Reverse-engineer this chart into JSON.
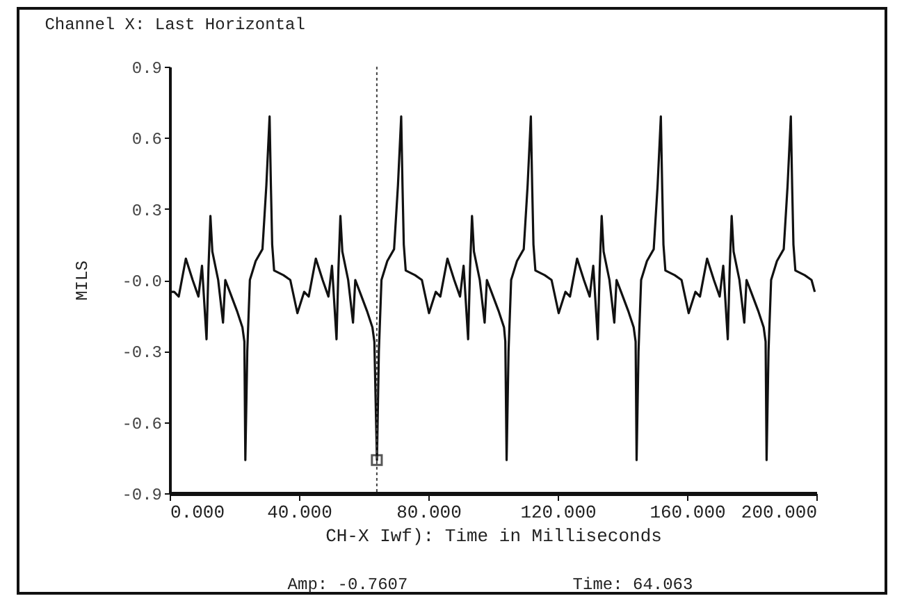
{
  "chart_data": {
    "type": "line",
    "title": "Channel X: Last Horizontal",
    "xlabel": "CH-X Iwf): Time in Milliseconds",
    "ylabel": "MILS",
    "annotations": [
      "Amp: -0.7607",
      "Time: 64.063"
    ],
    "xlim": [
      0,
      200
    ],
    "xticks": [
      {
        "value": 0,
        "label": "0.000"
      },
      {
        "value": 40,
        "label": "40.000"
      },
      {
        "value": 80,
        "label": "80.000"
      },
      {
        "value": 120,
        "label": "120.000"
      },
      {
        "value": 160,
        "label": "160.000"
      },
      {
        "value": 200,
        "label": "200.000"
      }
    ],
    "ylim": [
      -0.9,
      0.9
    ],
    "yticks": [
      -0.9,
      -0.6,
      -0.3,
      {
        "value": 0,
        "label": "-0.0"
      },
      0.3,
      0.6,
      0.9
    ],
    "grid": false,
    "line_style": "solid",
    "ref_lines": [
      {
        "axis": "x",
        "value": 64.063,
        "color": "#444444",
        "line_style": "dotted"
      }
    ],
    "series": [
      {
        "color": "#111111",
        "x": [
          0,
          1.4,
          2.8,
          5.0,
          7.1,
          8.9,
          10.0,
          11.4,
          12.0,
          12.6,
          13.2,
          15.0,
          16.5,
          17.2,
          18.6,
          20.8,
          22.5,
          23.1,
          23.4,
          24.0,
          24.8,
          26.6,
          28.7,
          29.9,
          30.9,
          31.3,
          31.7,
          32.3,
          35.2,
          37.3,
          39.5,
          41.6,
          43.0,
          45.2,
          47.3,
          49.1,
          50.2,
          51.6,
          52.2,
          52.8,
          53.4,
          55.2,
          56.7,
          57.4,
          58.8,
          61.0,
          62.7,
          63.3,
          64.1,
          64.7,
          65.5,
          67.3,
          69.4,
          70.6,
          71.6,
          72.0,
          72.4,
          73.0,
          75.9,
          78.0,
          80.2,
          82.3,
          83.7,
          85.9,
          88.0,
          89.8,
          90.9,
          92.3,
          92.9,
          93.5,
          94.1,
          95.9,
          97.4,
          98.1,
          99.5,
          101.7,
          103.4,
          103.8,
          104.2,
          104.8,
          105.6,
          107.4,
          109.5,
          110.7,
          111.7,
          112.1,
          112.5,
          113.1,
          116.0,
          118.1,
          120.3,
          122.4,
          123.8,
          126.0,
          128.1,
          129.9,
          131.0,
          132.4,
          133.0,
          133.6,
          134.2,
          136.0,
          137.5,
          138.2,
          139.6,
          141.8,
          143.5,
          144.1,
          144.4,
          145.0,
          145.8,
          147.6,
          149.7,
          150.9,
          151.9,
          152.3,
          152.7,
          153.3,
          156.2,
          158.3,
          160.5,
          162.6,
          164.0,
          166.2,
          168.3,
          170.1,
          171.2,
          172.6,
          173.2,
          173.8,
          174.4,
          176.2,
          177.7,
          178.4,
          179.8,
          182.0,
          183.7,
          184.3,
          184.6,
          185.2,
          186.0,
          187.8,
          189.9,
          191.1,
          192.1,
          192.5,
          192.9,
          193.5,
          196.4,
          198.5,
          199.5
        ],
        "values": [
          -0.05,
          -0.05,
          -0.07,
          0.09,
          0.0,
          -0.07,
          0.06,
          -0.25,
          0.05,
          0.27,
          0.12,
          0.0,
          -0.18,
          0.0,
          -0.05,
          -0.13,
          -0.2,
          -0.26,
          -0.76,
          -0.3,
          0.0,
          0.08,
          0.13,
          0.4,
          0.69,
          0.4,
          0.15,
          0.04,
          0.02,
          0.0,
          -0.14,
          -0.05,
          -0.07,
          0.09,
          0.0,
          -0.07,
          0.06,
          -0.25,
          0.05,
          0.27,
          0.12,
          0.0,
          -0.18,
          0.0,
          -0.05,
          -0.13,
          -0.2,
          -0.26,
          -0.76,
          -0.3,
          0.0,
          0.08,
          0.13,
          0.4,
          0.69,
          0.4,
          0.15,
          0.04,
          0.02,
          0.0,
          -0.14,
          -0.05,
          -0.07,
          0.09,
          0.0,
          -0.07,
          0.06,
          -0.25,
          0.05,
          0.27,
          0.12,
          0.0,
          -0.18,
          0.0,
          -0.05,
          -0.13,
          -0.2,
          -0.26,
          -0.76,
          -0.3,
          0.0,
          0.08,
          0.13,
          0.4,
          0.69,
          0.4,
          0.15,
          0.04,
          0.02,
          0.0,
          -0.14,
          -0.05,
          -0.07,
          0.09,
          0.0,
          -0.07,
          0.06,
          -0.25,
          0.05,
          0.27,
          0.12,
          0.0,
          -0.18,
          0.0,
          -0.05,
          -0.13,
          -0.2,
          -0.26,
          -0.76,
          -0.3,
          0.0,
          0.08,
          0.13,
          0.4,
          0.69,
          0.4,
          0.15,
          0.04,
          0.02,
          0.0,
          -0.14,
          -0.05,
          -0.07,
          0.09,
          0.0,
          -0.07,
          0.06,
          -0.25,
          0.05,
          0.27,
          0.12,
          0.0,
          -0.18,
          0.0,
          -0.05,
          -0.13,
          -0.2,
          -0.26,
          -0.76,
          -0.3,
          0.0,
          0.08,
          0.13,
          0.4,
          0.69,
          0.4,
          0.15,
          0.04,
          0.02,
          0.0,
          -0.05
        ]
      },
      {
        "type": "scatter",
        "marker": "square",
        "color": "#111111",
        "x": [
          64.063
        ],
        "values": [
          -0.76
        ]
      }
    ]
  }
}
